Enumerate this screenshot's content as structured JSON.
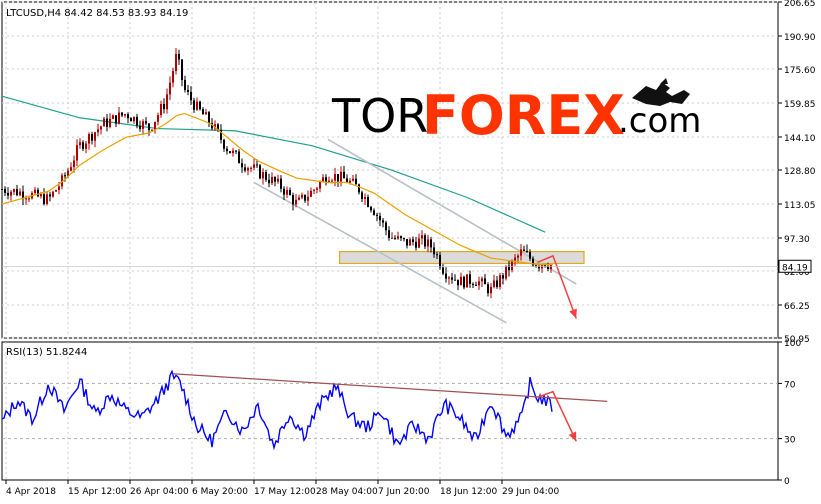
{
  "header": {
    "symbol_line": "LTCUSD,H4  84.42 84.53 83.93 84.19",
    "rsi_label": "RSI(13) 51.8244"
  },
  "logo": {
    "text_tor": "TOR",
    "text_forex": "FOREX",
    "text_com": ".com",
    "icon": "bull-and-bear-icon"
  },
  "colors": {
    "background": "#ffffff",
    "candle_up": "#b00000",
    "candle_down": "#000000",
    "ma_fast": "#e8a000",
    "ma_slow": "#20a090",
    "channel": "#b8c0c8",
    "zone_fill": "#d8d8d8",
    "zone_border": "#e0a000",
    "arrow": "#f04040",
    "rsi_line": "#0000ff",
    "rsi_trend": "#a05050",
    "grid": "#cccccc",
    "logo_tor": "#000000",
    "logo_forex": "#ff3300"
  },
  "chart_data": [
    {
      "type": "candlestick",
      "title": "LTCUSD,H4",
      "ohlc_last": {
        "open": 84.42,
        "high": 84.53,
        "low": 83.93,
        "close": 84.19
      },
      "ylim": [
        50.95,
        206.65
      ],
      "y_ticks": [
        206.65,
        190.9,
        175.6,
        159.85,
        144.1,
        128.8,
        113.05,
        97.3,
        82.0,
        66.25,
        50.95
      ],
      "current_price_label": "84.19",
      "x_tick_labels": [
        "4 Apr 2018",
        "15 Apr 12:00",
        "26 Apr 04:00",
        "6 May 20:00",
        "17 May 12:00",
        "28 May 04:00",
        "7 Jun 20:00",
        "18 Jun 12:00",
        "29 Jun 04:00"
      ],
      "price_path_x": [
        0,
        0.03,
        0.06,
        0.08,
        0.1,
        0.13,
        0.16,
        0.19,
        0.21,
        0.225,
        0.235,
        0.25,
        0.27,
        0.29,
        0.31,
        0.33,
        0.36,
        0.38,
        0.4,
        0.42,
        0.445,
        0.46,
        0.48,
        0.5,
        0.52,
        0.54,
        0.555,
        0.57,
        0.59,
        0.61,
        0.63,
        0.65,
        0.67,
        0.69,
        0.7,
        0.71
      ],
      "price_path_y": [
        120,
        118,
        115,
        125,
        140,
        150,
        155,
        148,
        160,
        182,
        166,
        158,
        150,
        139,
        132,
        128,
        121,
        113,
        119,
        127,
        124,
        120,
        110,
        98,
        95,
        96,
        93,
        82,
        77,
        78,
        73,
        82,
        91,
        85,
        86,
        84.2
      ],
      "ma_fast_y": [
        113,
        116,
        119,
        124,
        131,
        138,
        144,
        146,
        150,
        154,
        155,
        153,
        150,
        144,
        138,
        133,
        128,
        125,
        124,
        123,
        123,
        121,
        118,
        113,
        108,
        104,
        101,
        98,
        94,
        91,
        88,
        87,
        86,
        85,
        85,
        85
      ],
      "ma_slow_x": [
        0,
        0.1,
        0.2,
        0.3,
        0.4,
        0.5,
        0.6,
        0.7
      ],
      "ma_slow_y": [
        163,
        153,
        148,
        147,
        140,
        129,
        116,
        100
      ],
      "channel_upper": {
        "x": [
          0.42,
          0.74
        ],
        "y": [
          143,
          76
        ]
      },
      "channel_lower": {
        "x": [
          0.325,
          0.65
        ],
        "y": [
          123,
          58
        ]
      },
      "resistance_zone": {
        "x": [
          0.435,
          0.75
        ],
        "y_low": 85.5,
        "y_high": 91.0
      },
      "forecast_arrow": {
        "x": [
          0.69,
          0.71,
          0.74
        ],
        "y": [
          86,
          89,
          60
        ]
      }
    },
    {
      "type": "line",
      "title": "RSI(13)",
      "ylim": [
        0,
        100
      ],
      "y_ticks": [
        100,
        70,
        30,
        0
      ],
      "current_value": 51.8244,
      "rsi_x": [
        0,
        0.02,
        0.04,
        0.06,
        0.08,
        0.1,
        0.12,
        0.14,
        0.16,
        0.18,
        0.2,
        0.22,
        0.23,
        0.25,
        0.27,
        0.29,
        0.31,
        0.33,
        0.35,
        0.37,
        0.39,
        0.41,
        0.43,
        0.45,
        0.47,
        0.49,
        0.51,
        0.53,
        0.55,
        0.57,
        0.59,
        0.61,
        0.63,
        0.65,
        0.67,
        0.68,
        0.69,
        0.7,
        0.71
      ],
      "rsi_y": [
        42,
        58,
        44,
        70,
        50,
        72,
        48,
        62,
        50,
        45,
        58,
        75,
        70,
        40,
        28,
        50,
        35,
        55,
        25,
        48,
        33,
        55,
        68,
        45,
        38,
        50,
        25,
        40,
        30,
        55,
        45,
        28,
        58,
        32,
        45,
        70,
        60,
        58,
        52
      ],
      "trendline": {
        "x": [
          0.22,
          0.78
        ],
        "y": [
          77,
          57
        ]
      },
      "forecast_arrow": {
        "x": [
          0.69,
          0.71,
          0.74
        ],
        "y": [
          60,
          64,
          28
        ]
      }
    }
  ]
}
